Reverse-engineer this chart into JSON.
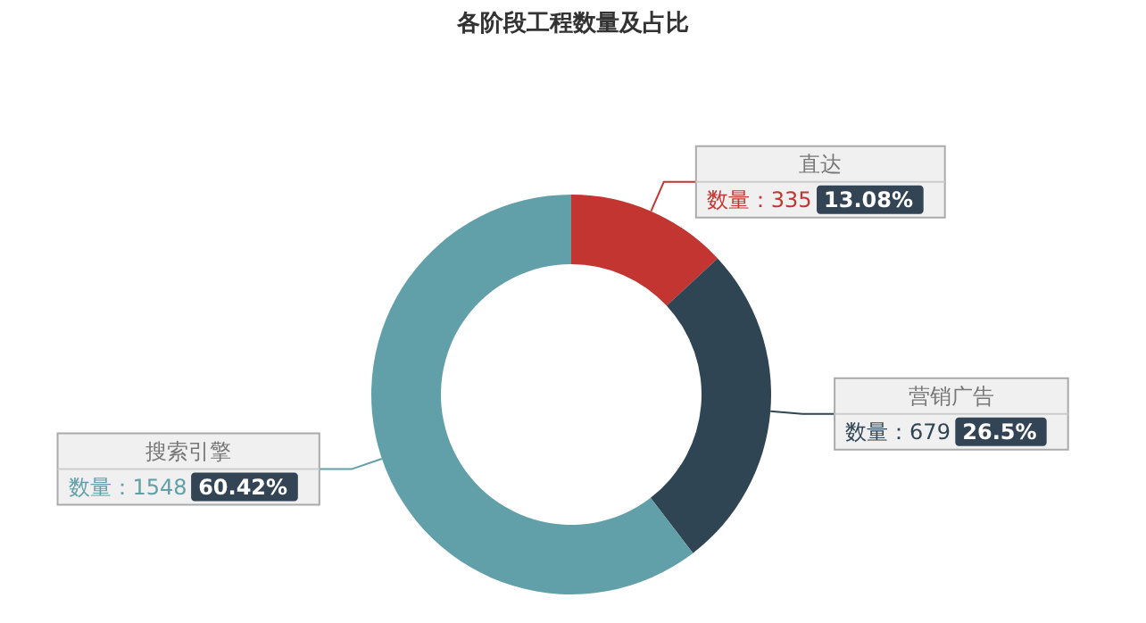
{
  "chart_data": {
    "type": "donut",
    "title": "各阶段工程数量及占比",
    "categories": [
      "直达",
      "营销广告",
      "搜索引擎"
    ],
    "values": [
      335,
      679,
      1548
    ],
    "colors": [
      "#c23531",
      "#2f4554",
      "#61a0a8"
    ],
    "value_labels": [
      "数量：335",
      "数量：679",
      "数量：1548"
    ],
    "annotations": [
      "13.08%",
      "26.5%",
      "60.42%"
    ],
    "legend": false
  }
}
